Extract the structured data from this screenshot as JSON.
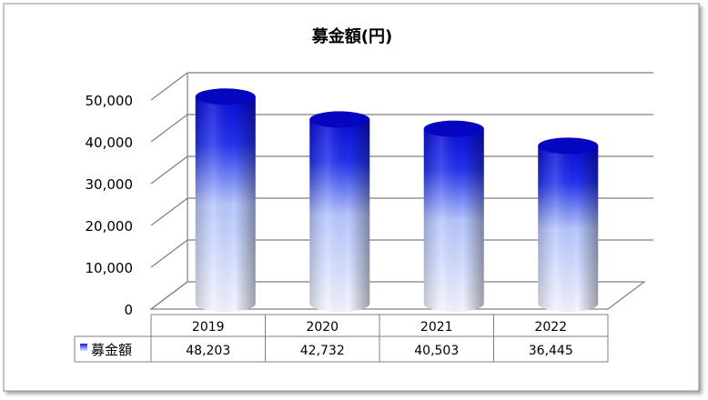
{
  "chart_data": {
    "type": "bar",
    "title": "募金額(円)",
    "categories": [
      "2019",
      "2020",
      "2021",
      "2022"
    ],
    "series": [
      {
        "name": "募金額",
        "values": [
          48203,
          42732,
          40503,
          36445
        ]
      }
    ],
    "value_labels": [
      "48,203",
      "42,732",
      "40,503",
      "36,445"
    ],
    "y_ticks": [
      "0",
      "10,000",
      "20,000",
      "30,000",
      "40,000",
      "50,000"
    ],
    "ylim": [
      0,
      50000
    ],
    "grid": true,
    "legend": "data-table-below",
    "style": "3d-cylinder",
    "colors": {
      "bar_top": "#1a1ae6",
      "bar_bottom": "#eef1ff",
      "grid": "#808080",
      "frame": "#808080"
    }
  }
}
